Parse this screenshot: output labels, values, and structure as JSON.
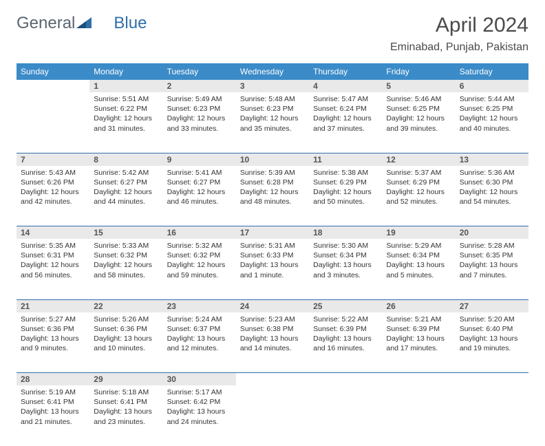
{
  "logo": {
    "word1": "General",
    "word2": "Blue"
  },
  "title": "April 2024",
  "location": "Eminabad, Punjab, Pakistan",
  "colors": {
    "header_bg": "#3b8bc8",
    "header_text": "#ffffff",
    "daynum_bg": "#e9e9e9",
    "row_border": "#2f6fa8",
    "logo_gray": "#5a6570",
    "logo_blue": "#2f6fa8",
    "body_text": "#333333"
  },
  "font": {
    "family": "Arial",
    "header_size_pt": 9,
    "cell_size_pt": 8,
    "title_size_pt": 22
  },
  "day_headers": [
    "Sunday",
    "Monday",
    "Tuesday",
    "Wednesday",
    "Thursday",
    "Friday",
    "Saturday"
  ],
  "weeks": [
    {
      "nums": [
        "",
        "1",
        "2",
        "3",
        "4",
        "5",
        "6"
      ],
      "cells": [
        null,
        {
          "sunrise": "Sunrise: 5:51 AM",
          "sunset": "Sunset: 6:22 PM",
          "day1": "Daylight: 12 hours",
          "day2": "and 31 minutes."
        },
        {
          "sunrise": "Sunrise: 5:49 AM",
          "sunset": "Sunset: 6:23 PM",
          "day1": "Daylight: 12 hours",
          "day2": "and 33 minutes."
        },
        {
          "sunrise": "Sunrise: 5:48 AM",
          "sunset": "Sunset: 6:23 PM",
          "day1": "Daylight: 12 hours",
          "day2": "and 35 minutes."
        },
        {
          "sunrise": "Sunrise: 5:47 AM",
          "sunset": "Sunset: 6:24 PM",
          "day1": "Daylight: 12 hours",
          "day2": "and 37 minutes."
        },
        {
          "sunrise": "Sunrise: 5:46 AM",
          "sunset": "Sunset: 6:25 PM",
          "day1": "Daylight: 12 hours",
          "day2": "and 39 minutes."
        },
        {
          "sunrise": "Sunrise: 5:44 AM",
          "sunset": "Sunset: 6:25 PM",
          "day1": "Daylight: 12 hours",
          "day2": "and 40 minutes."
        }
      ]
    },
    {
      "nums": [
        "7",
        "8",
        "9",
        "10",
        "11",
        "12",
        "13"
      ],
      "cells": [
        {
          "sunrise": "Sunrise: 5:43 AM",
          "sunset": "Sunset: 6:26 PM",
          "day1": "Daylight: 12 hours",
          "day2": "and 42 minutes."
        },
        {
          "sunrise": "Sunrise: 5:42 AM",
          "sunset": "Sunset: 6:27 PM",
          "day1": "Daylight: 12 hours",
          "day2": "and 44 minutes."
        },
        {
          "sunrise": "Sunrise: 5:41 AM",
          "sunset": "Sunset: 6:27 PM",
          "day1": "Daylight: 12 hours",
          "day2": "and 46 minutes."
        },
        {
          "sunrise": "Sunrise: 5:39 AM",
          "sunset": "Sunset: 6:28 PM",
          "day1": "Daylight: 12 hours",
          "day2": "and 48 minutes."
        },
        {
          "sunrise": "Sunrise: 5:38 AM",
          "sunset": "Sunset: 6:29 PM",
          "day1": "Daylight: 12 hours",
          "day2": "and 50 minutes."
        },
        {
          "sunrise": "Sunrise: 5:37 AM",
          "sunset": "Sunset: 6:29 PM",
          "day1": "Daylight: 12 hours",
          "day2": "and 52 minutes."
        },
        {
          "sunrise": "Sunrise: 5:36 AM",
          "sunset": "Sunset: 6:30 PM",
          "day1": "Daylight: 12 hours",
          "day2": "and 54 minutes."
        }
      ]
    },
    {
      "nums": [
        "14",
        "15",
        "16",
        "17",
        "18",
        "19",
        "20"
      ],
      "cells": [
        {
          "sunrise": "Sunrise: 5:35 AM",
          "sunset": "Sunset: 6:31 PM",
          "day1": "Daylight: 12 hours",
          "day2": "and 56 minutes."
        },
        {
          "sunrise": "Sunrise: 5:33 AM",
          "sunset": "Sunset: 6:32 PM",
          "day1": "Daylight: 12 hours",
          "day2": "and 58 minutes."
        },
        {
          "sunrise": "Sunrise: 5:32 AM",
          "sunset": "Sunset: 6:32 PM",
          "day1": "Daylight: 12 hours",
          "day2": "and 59 minutes."
        },
        {
          "sunrise": "Sunrise: 5:31 AM",
          "sunset": "Sunset: 6:33 PM",
          "day1": "Daylight: 13 hours",
          "day2": "and 1 minute."
        },
        {
          "sunrise": "Sunrise: 5:30 AM",
          "sunset": "Sunset: 6:34 PM",
          "day1": "Daylight: 13 hours",
          "day2": "and 3 minutes."
        },
        {
          "sunrise": "Sunrise: 5:29 AM",
          "sunset": "Sunset: 6:34 PM",
          "day1": "Daylight: 13 hours",
          "day2": "and 5 minutes."
        },
        {
          "sunrise": "Sunrise: 5:28 AM",
          "sunset": "Sunset: 6:35 PM",
          "day1": "Daylight: 13 hours",
          "day2": "and 7 minutes."
        }
      ]
    },
    {
      "nums": [
        "21",
        "22",
        "23",
        "24",
        "25",
        "26",
        "27"
      ],
      "cells": [
        {
          "sunrise": "Sunrise: 5:27 AM",
          "sunset": "Sunset: 6:36 PM",
          "day1": "Daylight: 13 hours",
          "day2": "and 9 minutes."
        },
        {
          "sunrise": "Sunrise: 5:26 AM",
          "sunset": "Sunset: 6:36 PM",
          "day1": "Daylight: 13 hours",
          "day2": "and 10 minutes."
        },
        {
          "sunrise": "Sunrise: 5:24 AM",
          "sunset": "Sunset: 6:37 PM",
          "day1": "Daylight: 13 hours",
          "day2": "and 12 minutes."
        },
        {
          "sunrise": "Sunrise: 5:23 AM",
          "sunset": "Sunset: 6:38 PM",
          "day1": "Daylight: 13 hours",
          "day2": "and 14 minutes."
        },
        {
          "sunrise": "Sunrise: 5:22 AM",
          "sunset": "Sunset: 6:39 PM",
          "day1": "Daylight: 13 hours",
          "day2": "and 16 minutes."
        },
        {
          "sunrise": "Sunrise: 5:21 AM",
          "sunset": "Sunset: 6:39 PM",
          "day1": "Daylight: 13 hours",
          "day2": "and 17 minutes."
        },
        {
          "sunrise": "Sunrise: 5:20 AM",
          "sunset": "Sunset: 6:40 PM",
          "day1": "Daylight: 13 hours",
          "day2": "and 19 minutes."
        }
      ]
    },
    {
      "nums": [
        "28",
        "29",
        "30",
        "",
        "",
        "",
        ""
      ],
      "cells": [
        {
          "sunrise": "Sunrise: 5:19 AM",
          "sunset": "Sunset: 6:41 PM",
          "day1": "Daylight: 13 hours",
          "day2": "and 21 minutes."
        },
        {
          "sunrise": "Sunrise: 5:18 AM",
          "sunset": "Sunset: 6:41 PM",
          "day1": "Daylight: 13 hours",
          "day2": "and 23 minutes."
        },
        {
          "sunrise": "Sunrise: 5:17 AM",
          "sunset": "Sunset: 6:42 PM",
          "day1": "Daylight: 13 hours",
          "day2": "and 24 minutes."
        },
        null,
        null,
        null,
        null
      ]
    }
  ]
}
